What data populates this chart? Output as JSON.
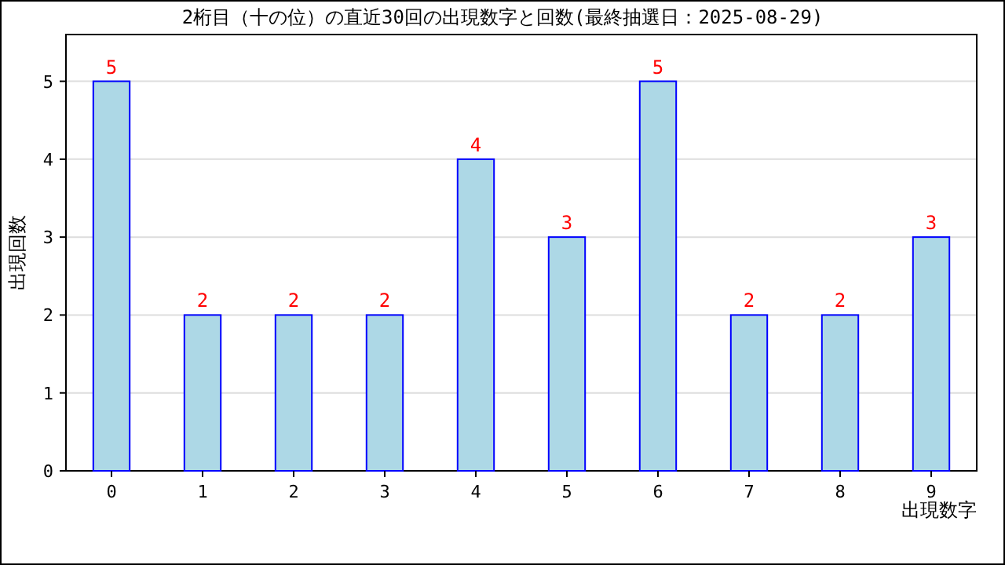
{
  "chart_data": {
    "type": "bar",
    "title": "2桁目（十の位）の直近30回の出現数字と回数(最終抽選日：2025-08-29)",
    "xlabel": "出現数字",
    "ylabel": "出現回数",
    "categories": [
      "0",
      "1",
      "2",
      "3",
      "4",
      "5",
      "6",
      "7",
      "8",
      "9"
    ],
    "values": [
      5,
      2,
      2,
      2,
      4,
      3,
      5,
      2,
      2,
      3
    ],
    "color": "#add8e6",
    "ylim": [
      0,
      5.6
    ],
    "yticks": [
      0,
      1,
      2,
      3,
      4,
      5
    ],
    "grid": "y",
    "data_labels": true
  }
}
